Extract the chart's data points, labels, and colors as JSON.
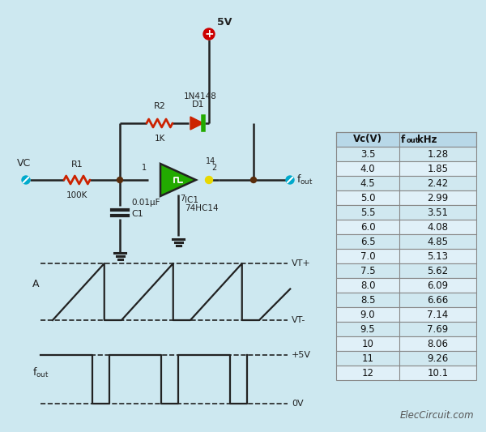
{
  "bg_color": "#cde8f0",
  "table_header": [
    "Vc(V)",
    "fout kHz"
  ],
  "table_data": [
    [
      "3.5",
      "1.28"
    ],
    [
      "4.0",
      "1.85"
    ],
    [
      "4.5",
      "2.42"
    ],
    [
      "5.0",
      "2.99"
    ],
    [
      "5.5",
      "3.51"
    ],
    [
      "6.0",
      "4.08"
    ],
    [
      "6.5",
      "4.85"
    ],
    [
      "7.0",
      "5.13"
    ],
    [
      "7.5",
      "5.62"
    ],
    [
      "8.0",
      "6.09"
    ],
    [
      "8.5",
      "6.66"
    ],
    [
      "9.0",
      "7.14"
    ],
    [
      "9.5",
      "7.69"
    ],
    [
      "10",
      "8.06"
    ],
    [
      "11",
      "9.26"
    ],
    [
      "12",
      "10.1"
    ]
  ],
  "wire_color": "#222222",
  "resistor_color": "#cc2200",
  "green_color": "#22aa00",
  "node_color": "#5a2d0c",
  "probe_color": "#00aacc",
  "supply_color": "#cc0000",
  "diode_body_color": "#cc2200",
  "diode_bar_color": "#22aa00",
  "yellow_color": "#e8d800",
  "table_bg1": "#d0e8f0",
  "table_bg2": "#e0f0f8",
  "table_header_bg": "#b8d8e8",
  "table_border": "#888888"
}
